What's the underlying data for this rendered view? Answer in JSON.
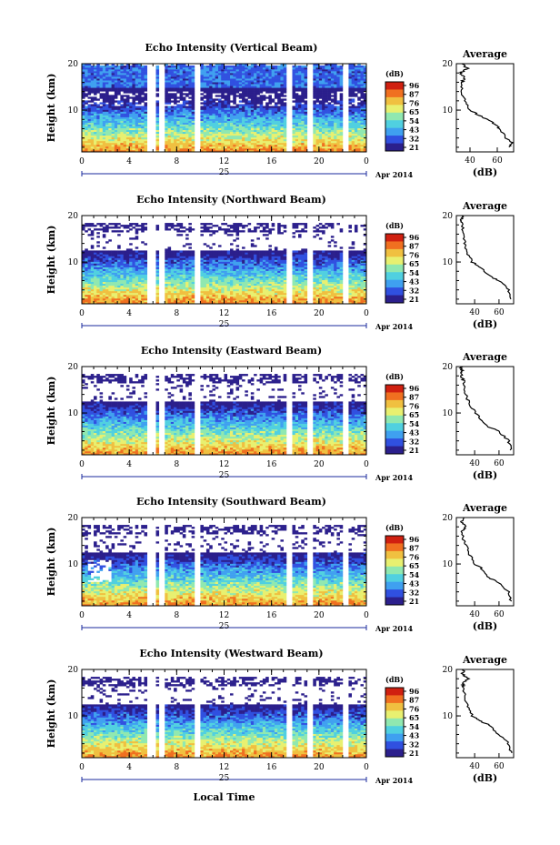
{
  "figure": {
    "date_label": "Apr 2014",
    "day_label": "25",
    "x_axis_label": "Local Time"
  },
  "colors": {
    "scale": [
      "#2b1f8c",
      "#3050e0",
      "#3fa0f0",
      "#50d0e0",
      "#90e8b0",
      "#e8f070",
      "#f0c040",
      "#f07020",
      "#d02010"
    ]
  },
  "chart_data": [
    {
      "type": "heatmap",
      "title": "Echo Intensity (Vertical Beam)",
      "ylabel": "Height (km)",
      "xlim": [
        0,
        24
      ],
      "xticks": [
        "0",
        "4",
        "8",
        "12",
        "16",
        "20",
        "0"
      ],
      "ylim": [
        1,
        20
      ],
      "yticks": [
        "10",
        "20"
      ],
      "colorbar_label": "(dB)",
      "colorbar_ticks": [
        "96",
        "87",
        "76",
        "65",
        "54",
        "43",
        "32",
        "21"
      ],
      "data_gaps_hours": [
        [
          5.5,
          6.2
        ],
        [
          6.6,
          6.9
        ],
        [
          9.6,
          10.0
        ],
        [
          17.3,
          17.8
        ],
        [
          19.0,
          19.4
        ],
        [
          22.1,
          22.5
        ]
      ],
      "profile": {
        "title": "Average",
        "xlabel": "(dB)",
        "xticks": [
          "40",
          "60"
        ],
        "xlim": [
          30,
          72
        ],
        "points": [
          [
            68,
            2
          ],
          [
            71,
            3
          ],
          [
            66,
            4
          ],
          [
            62,
            6
          ],
          [
            58,
            7
          ],
          [
            52,
            8
          ],
          [
            46,
            9
          ],
          [
            40,
            10
          ],
          [
            36,
            12
          ],
          [
            34,
            14
          ],
          [
            34,
            16
          ],
          [
            36,
            17
          ],
          [
            33,
            18
          ],
          [
            38,
            19
          ],
          [
            34,
            20
          ]
        ]
      }
    },
    {
      "type": "heatmap",
      "title": "Echo Intensity (Northward Beam)",
      "ylabel": "Height (km)",
      "xlim": [
        0,
        24
      ],
      "xticks": [
        "0",
        "4",
        "8",
        "12",
        "16",
        "20",
        "0"
      ],
      "ylim": [
        1,
        20
      ],
      "yticks": [
        "10",
        "20"
      ],
      "colorbar_label": "(dB)",
      "colorbar_ticks": [
        "96",
        "87",
        "76",
        "65",
        "54",
        "43",
        "32",
        "21"
      ],
      "data_gaps_hours": [
        [
          5.5,
          6.2
        ],
        [
          6.6,
          6.9
        ],
        [
          9.6,
          10.0
        ],
        [
          17.3,
          17.8
        ],
        [
          19.0,
          19.4
        ],
        [
          22.1,
          22.5
        ]
      ],
      "profile": {
        "title": "Average",
        "xlabel": "(dB)",
        "xticks": [
          "40",
          "60"
        ],
        "xlim": [
          25,
          72
        ],
        "points": [
          [
            70,
            2
          ],
          [
            68,
            4
          ],
          [
            60,
            6
          ],
          [
            52,
            7
          ],
          [
            44,
            9
          ],
          [
            38,
            10
          ],
          [
            34,
            12
          ],
          [
            32,
            14
          ],
          [
            31,
            16
          ],
          [
            30,
            18
          ],
          [
            29,
            19
          ],
          [
            31,
            20
          ]
        ]
      }
    },
    {
      "type": "heatmap",
      "title": "Echo Intensity (Eastward Beam)",
      "ylabel": "Height (km)",
      "xlim": [
        0,
        24
      ],
      "xticks": [
        "0",
        "4",
        "8",
        "12",
        "16",
        "20",
        "0"
      ],
      "ylim": [
        1,
        20
      ],
      "yticks": [
        "10",
        "20"
      ],
      "colorbar_label": "(dB)",
      "colorbar_ticks": [
        "96",
        "87",
        "76",
        "65",
        "54",
        "43",
        "32",
        "21"
      ],
      "data_gaps_hours": [
        [
          5.5,
          6.2
        ],
        [
          6.6,
          6.9
        ],
        [
          9.6,
          10.0
        ],
        [
          17.3,
          17.8
        ],
        [
          19.0,
          19.4
        ],
        [
          22.1,
          22.5
        ]
      ],
      "profile": {
        "title": "Average",
        "xlabel": "(dB)",
        "xticks": [
          "40",
          "60"
        ],
        "xlim": [
          25,
          72
        ],
        "points": [
          [
            70,
            2
          ],
          [
            68,
            4
          ],
          [
            60,
            6
          ],
          [
            52,
            7
          ],
          [
            44,
            9
          ],
          [
            38,
            11
          ],
          [
            34,
            13
          ],
          [
            32,
            15
          ],
          [
            31,
            17
          ],
          [
            29,
            18
          ],
          [
            30,
            19
          ],
          [
            28,
            20
          ]
        ]
      }
    },
    {
      "type": "heatmap",
      "title": "Echo Intensity (Southward Beam)",
      "ylabel": "Height (km)",
      "xlim": [
        0,
        24
      ],
      "xticks": [
        "0",
        "4",
        "8",
        "12",
        "16",
        "20",
        "0"
      ],
      "ylim": [
        1,
        20
      ],
      "yticks": [
        "10",
        "20"
      ],
      "colorbar_label": "(dB)",
      "colorbar_ticks": [
        "96",
        "87",
        "76",
        "65",
        "54",
        "43",
        "32",
        "21"
      ],
      "data_gaps_hours": [
        [
          5.5,
          6.2
        ],
        [
          6.6,
          6.9
        ],
        [
          9.6,
          10.0
        ],
        [
          17.3,
          17.8
        ],
        [
          19.0,
          19.4
        ],
        [
          22.1,
          22.5
        ]
      ],
      "profile": {
        "title": "Average",
        "xlabel": "(dB)",
        "xticks": [
          "40",
          "60"
        ],
        "xlim": [
          25,
          72
        ],
        "points": [
          [
            70,
            2
          ],
          [
            68,
            4
          ],
          [
            60,
            6
          ],
          [
            52,
            7
          ],
          [
            46,
            9
          ],
          [
            40,
            10
          ],
          [
            36,
            12
          ],
          [
            33,
            14
          ],
          [
            31,
            15
          ],
          [
            30,
            17
          ],
          [
            33,
            18
          ],
          [
            29,
            19
          ],
          [
            31,
            20
          ]
        ]
      }
    },
    {
      "type": "heatmap",
      "title": "Echo Intensity (Westward Beam)",
      "ylabel": "Height (km)",
      "xlim": [
        0,
        24
      ],
      "xticks": [
        "0",
        "4",
        "8",
        "12",
        "16",
        "20",
        "0"
      ],
      "ylim": [
        1,
        20
      ],
      "yticks": [
        "10",
        "20"
      ],
      "colorbar_label": "(dB)",
      "colorbar_ticks": [
        "96",
        "87",
        "76",
        "65",
        "54",
        "43",
        "32",
        "21"
      ],
      "data_gaps_hours": [
        [
          5.5,
          6.2
        ],
        [
          6.6,
          6.9
        ],
        [
          9.6,
          10.0
        ],
        [
          17.3,
          17.8
        ],
        [
          19.0,
          19.4
        ],
        [
          22.1,
          22.5
        ]
      ],
      "profile": {
        "title": "Average",
        "xlabel": "(dB)",
        "xticks": [
          "40",
          "60"
        ],
        "xlim": [
          25,
          72
        ],
        "points": [
          [
            70,
            2
          ],
          [
            68,
            4
          ],
          [
            60,
            6
          ],
          [
            52,
            8
          ],
          [
            44,
            9
          ],
          [
            38,
            10
          ],
          [
            34,
            12
          ],
          [
            32,
            14
          ],
          [
            31,
            16
          ],
          [
            30,
            17
          ],
          [
            35,
            18
          ],
          [
            30,
            19
          ],
          [
            31,
            20
          ]
        ]
      }
    }
  ]
}
